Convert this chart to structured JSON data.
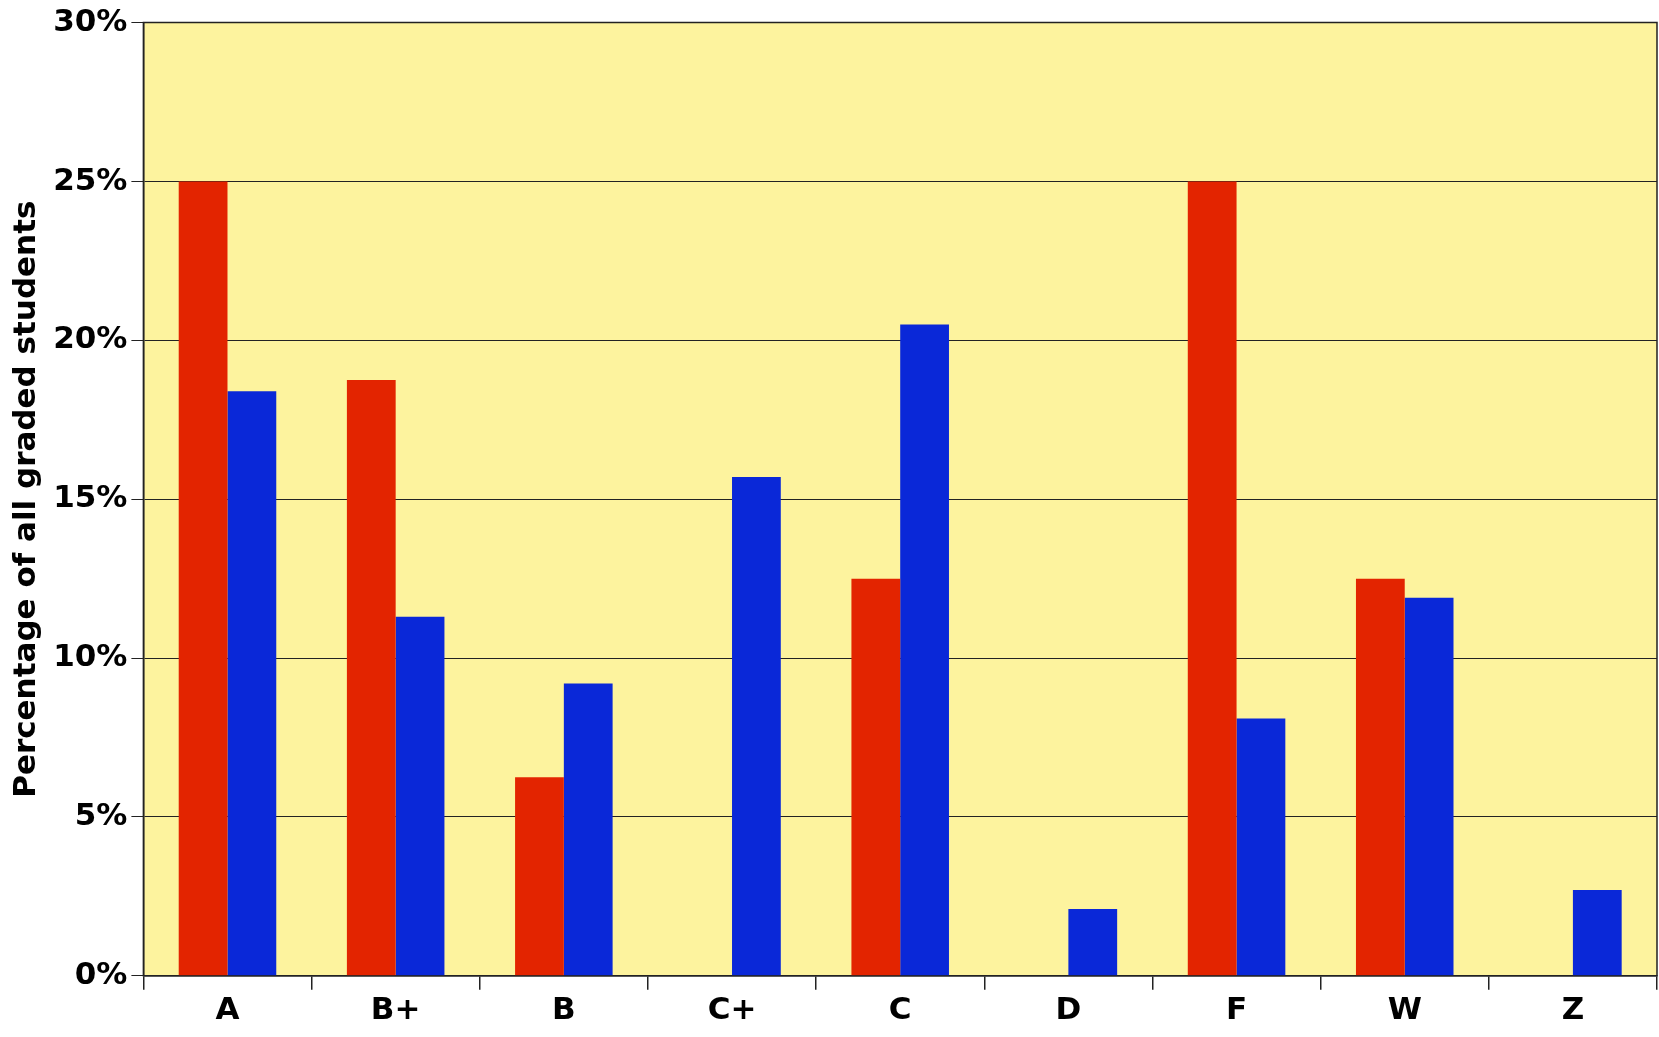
{
  "chart_data": {
    "type": "bar",
    "ylabel": "Percentage of all graded students",
    "categories": [
      "A",
      "B+",
      "B",
      "C+",
      "C",
      "D",
      "F",
      "W",
      "Z"
    ],
    "series": [
      {
        "color": "#e32400",
        "values": [
          25,
          18.75,
          6.25,
          0,
          12.5,
          0,
          25,
          12.5,
          0
        ]
      },
      {
        "color": "#0a28d8",
        "values": [
          18.4,
          11.3,
          9.2,
          15.7,
          20.5,
          2.1,
          8.1,
          11.9,
          2.7
        ]
      }
    ],
    "ylim": [
      0,
      30
    ],
    "yticks": [
      {
        "value": 0,
        "label": "0%"
      },
      {
        "value": 5,
        "label": "5%"
      },
      {
        "value": 10,
        "label": "10%"
      },
      {
        "value": 15,
        "label": "15%"
      },
      {
        "value": 20,
        "label": "20%"
      },
      {
        "value": 25,
        "label": "25%"
      },
      {
        "value": 30,
        "label": "30%"
      }
    ],
    "grid": "y",
    "legend": false
  }
}
